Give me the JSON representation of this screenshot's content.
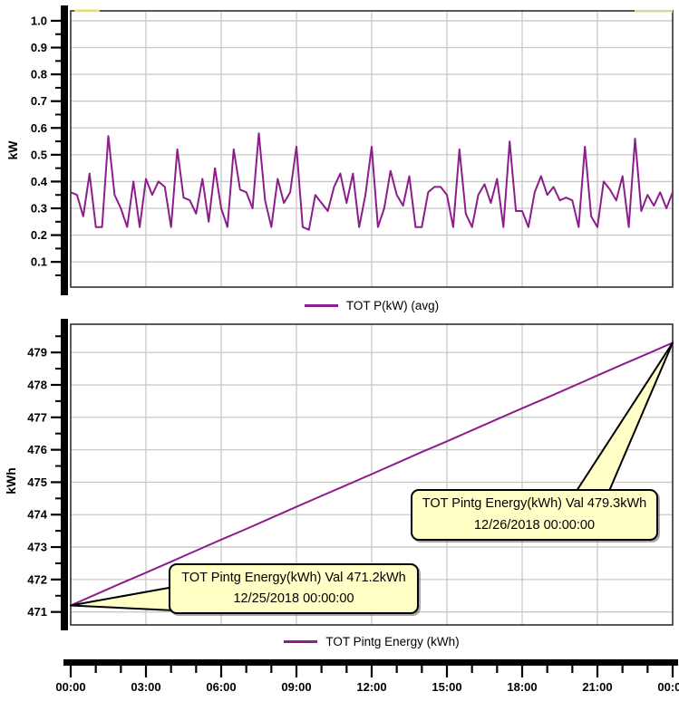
{
  "colors": {
    "series": "#8D1D8D",
    "grid": "#C8C8C8",
    "plot_border": "#3C3C3C",
    "axis": "#000000",
    "callout_fill": "#FFFFC6",
    "callout_border": "#000000",
    "background": "#FFFFFF",
    "text": "#000000"
  },
  "x_axis": {
    "tick_labels": [
      "00:00",
      "03:00",
      "06:00",
      "09:00",
      "12:00",
      "15:00",
      "18:00",
      "21:00",
      "00:00"
    ],
    "major_step_hours": 3,
    "minor_step_hours": 1,
    "span_hours": 24
  },
  "chart_data": [
    {
      "type": "line",
      "title": "",
      "ylabel": "kW",
      "xlabel": "",
      "legend": "TOT P(kW) (avg)",
      "legend_position": "bottom",
      "grid": true,
      "ylim": [
        0.006,
        1.037
      ],
      "ytick_values": [
        0.1,
        0.2,
        0.3,
        0.4,
        0.5,
        0.6,
        0.7,
        0.8,
        0.9,
        1.0
      ],
      "ytick_labels": [
        "0.1",
        "0.2",
        "0.3",
        "0.4",
        "0.5",
        "0.6",
        "0.7",
        "0.8",
        "0.9",
        "1.0"
      ],
      "y_minor_step": 0.05,
      "x_major_step_hours": 3,
      "series": [
        {
          "name": "TOT P(kW) (avg)",
          "color": "#8D1D8D",
          "x_start_hour": 0,
          "x_end_hour": 24,
          "interval_minutes": 15,
          "values": [
            0.36,
            0.35,
            0.27,
            0.43,
            0.23,
            0.23,
            0.57,
            0.35,
            0.3,
            0.23,
            0.4,
            0.23,
            0.41,
            0.35,
            0.4,
            0.38,
            0.23,
            0.52,
            0.34,
            0.33,
            0.28,
            0.41,
            0.25,
            0.45,
            0.3,
            0.23,
            0.52,
            0.37,
            0.36,
            0.3,
            0.58,
            0.33,
            0.23,
            0.41,
            0.32,
            0.36,
            0.53,
            0.23,
            0.22,
            0.35,
            0.32,
            0.29,
            0.38,
            0.43,
            0.32,
            0.43,
            0.23,
            0.35,
            0.53,
            0.23,
            0.3,
            0.44,
            0.35,
            0.31,
            0.42,
            0.23,
            0.23,
            0.36,
            0.38,
            0.38,
            0.35,
            0.23,
            0.52,
            0.28,
            0.23,
            0.35,
            0.39,
            0.32,
            0.41,
            0.23,
            0.55,
            0.29,
            0.29,
            0.23,
            0.36,
            0.42,
            0.35,
            0.38,
            0.33,
            0.34,
            0.33,
            0.23,
            0.53,
            0.27,
            0.23,
            0.4,
            0.37,
            0.33,
            0.42,
            0.23,
            0.56,
            0.29,
            0.35,
            0.31,
            0.36,
            0.3,
            0.36
          ]
        }
      ]
    },
    {
      "type": "line",
      "title": "",
      "ylabel": "kWh",
      "xlabel": "",
      "legend": "TOT Pintg Energy (kWh)",
      "legend_position": "bottom",
      "grid": true,
      "ylim": [
        470.6,
        479.87
      ],
      "ytick_values": [
        471,
        472,
        473,
        474,
        475,
        476,
        477,
        478,
        479
      ],
      "ytick_labels": [
        "471",
        "472",
        "473",
        "474",
        "475",
        "476",
        "477",
        "478",
        "479"
      ],
      "y_minor_step": 0.5,
      "x_major_step_hours": 3,
      "series": [
        {
          "name": "TOT Pintg Energy (kWh)",
          "color": "#8D1D8D",
          "x_start_hour": 0,
          "x_end_hour": 24,
          "interval_minutes": 60,
          "values": [
            471.2,
            471.54,
            471.88,
            472.21,
            472.55,
            472.89,
            473.23,
            473.56,
            473.9,
            474.24,
            474.58,
            474.91,
            475.25,
            475.59,
            475.93,
            476.26,
            476.6,
            476.94,
            477.28,
            477.61,
            477.95,
            478.29,
            478.63,
            478.96,
            479.3
          ]
        }
      ],
      "annotations": [
        {
          "line1": "TOT Pintg Energy(kWh) Val 471.2kWh",
          "line2": "12/25/2018 00:00:00",
          "anchor_hour": 0,
          "anchor_value": 471.2
        },
        {
          "line1": "TOT Pintg Energy(kWh) Val 479.3kWh",
          "line2": "12/26/2018 00:00:00",
          "anchor_hour": 24,
          "anchor_value": 479.3
        }
      ]
    }
  ]
}
